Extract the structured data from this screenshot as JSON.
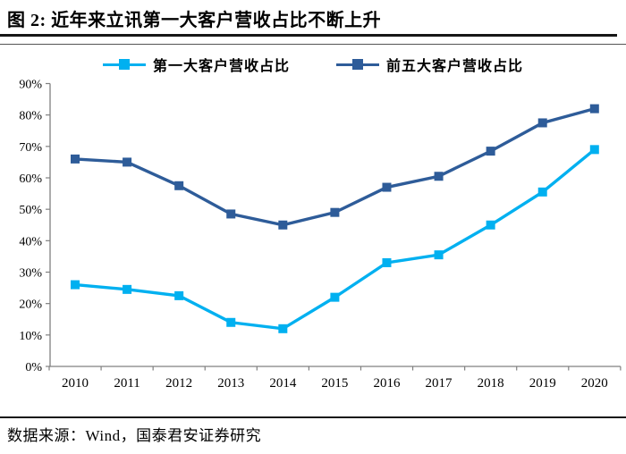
{
  "header": {
    "title": "图 2:  近年来立讯第一大客户营收占比不断上升"
  },
  "footer": {
    "source": "数据来源：Wind，国泰君安证券研究"
  },
  "colors": {
    "series_first_customer": "#00B0F0",
    "series_top5_customers": "#2E5C99",
    "axis": "#808080",
    "rule": "#161616"
  },
  "chart_data": {
    "type": "line",
    "title": "近年来立讯第一大客户营收占比不断上升",
    "categories": [
      "2010",
      "2011",
      "2012",
      "2013",
      "2014",
      "2015",
      "2016",
      "2017",
      "2018",
      "2019",
      "2020"
    ],
    "series": [
      {
        "name": "第一大客户营收占比",
        "color": "#00B0F0",
        "marker": "square",
        "values": [
          26,
          24.5,
          22.5,
          14,
          12,
          22,
          33,
          35.5,
          45,
          55.5,
          69
        ]
      },
      {
        "name": "前五大客户营收占比",
        "color": "#2E5C99",
        "marker": "square",
        "values": [
          66,
          65,
          57.5,
          48.5,
          45,
          49,
          57,
          60.5,
          68.5,
          77.5,
          82
        ]
      }
    ],
    "xlabel": "",
    "ylabel": "",
    "ylim": [
      0,
      90
    ],
    "y_tick_step": 10,
    "y_tick_labels": [
      "0%",
      "10%",
      "20%",
      "30%",
      "40%",
      "50%",
      "60%",
      "70%",
      "80%",
      "90%"
    ],
    "grid": false,
    "legend_position": "top"
  }
}
